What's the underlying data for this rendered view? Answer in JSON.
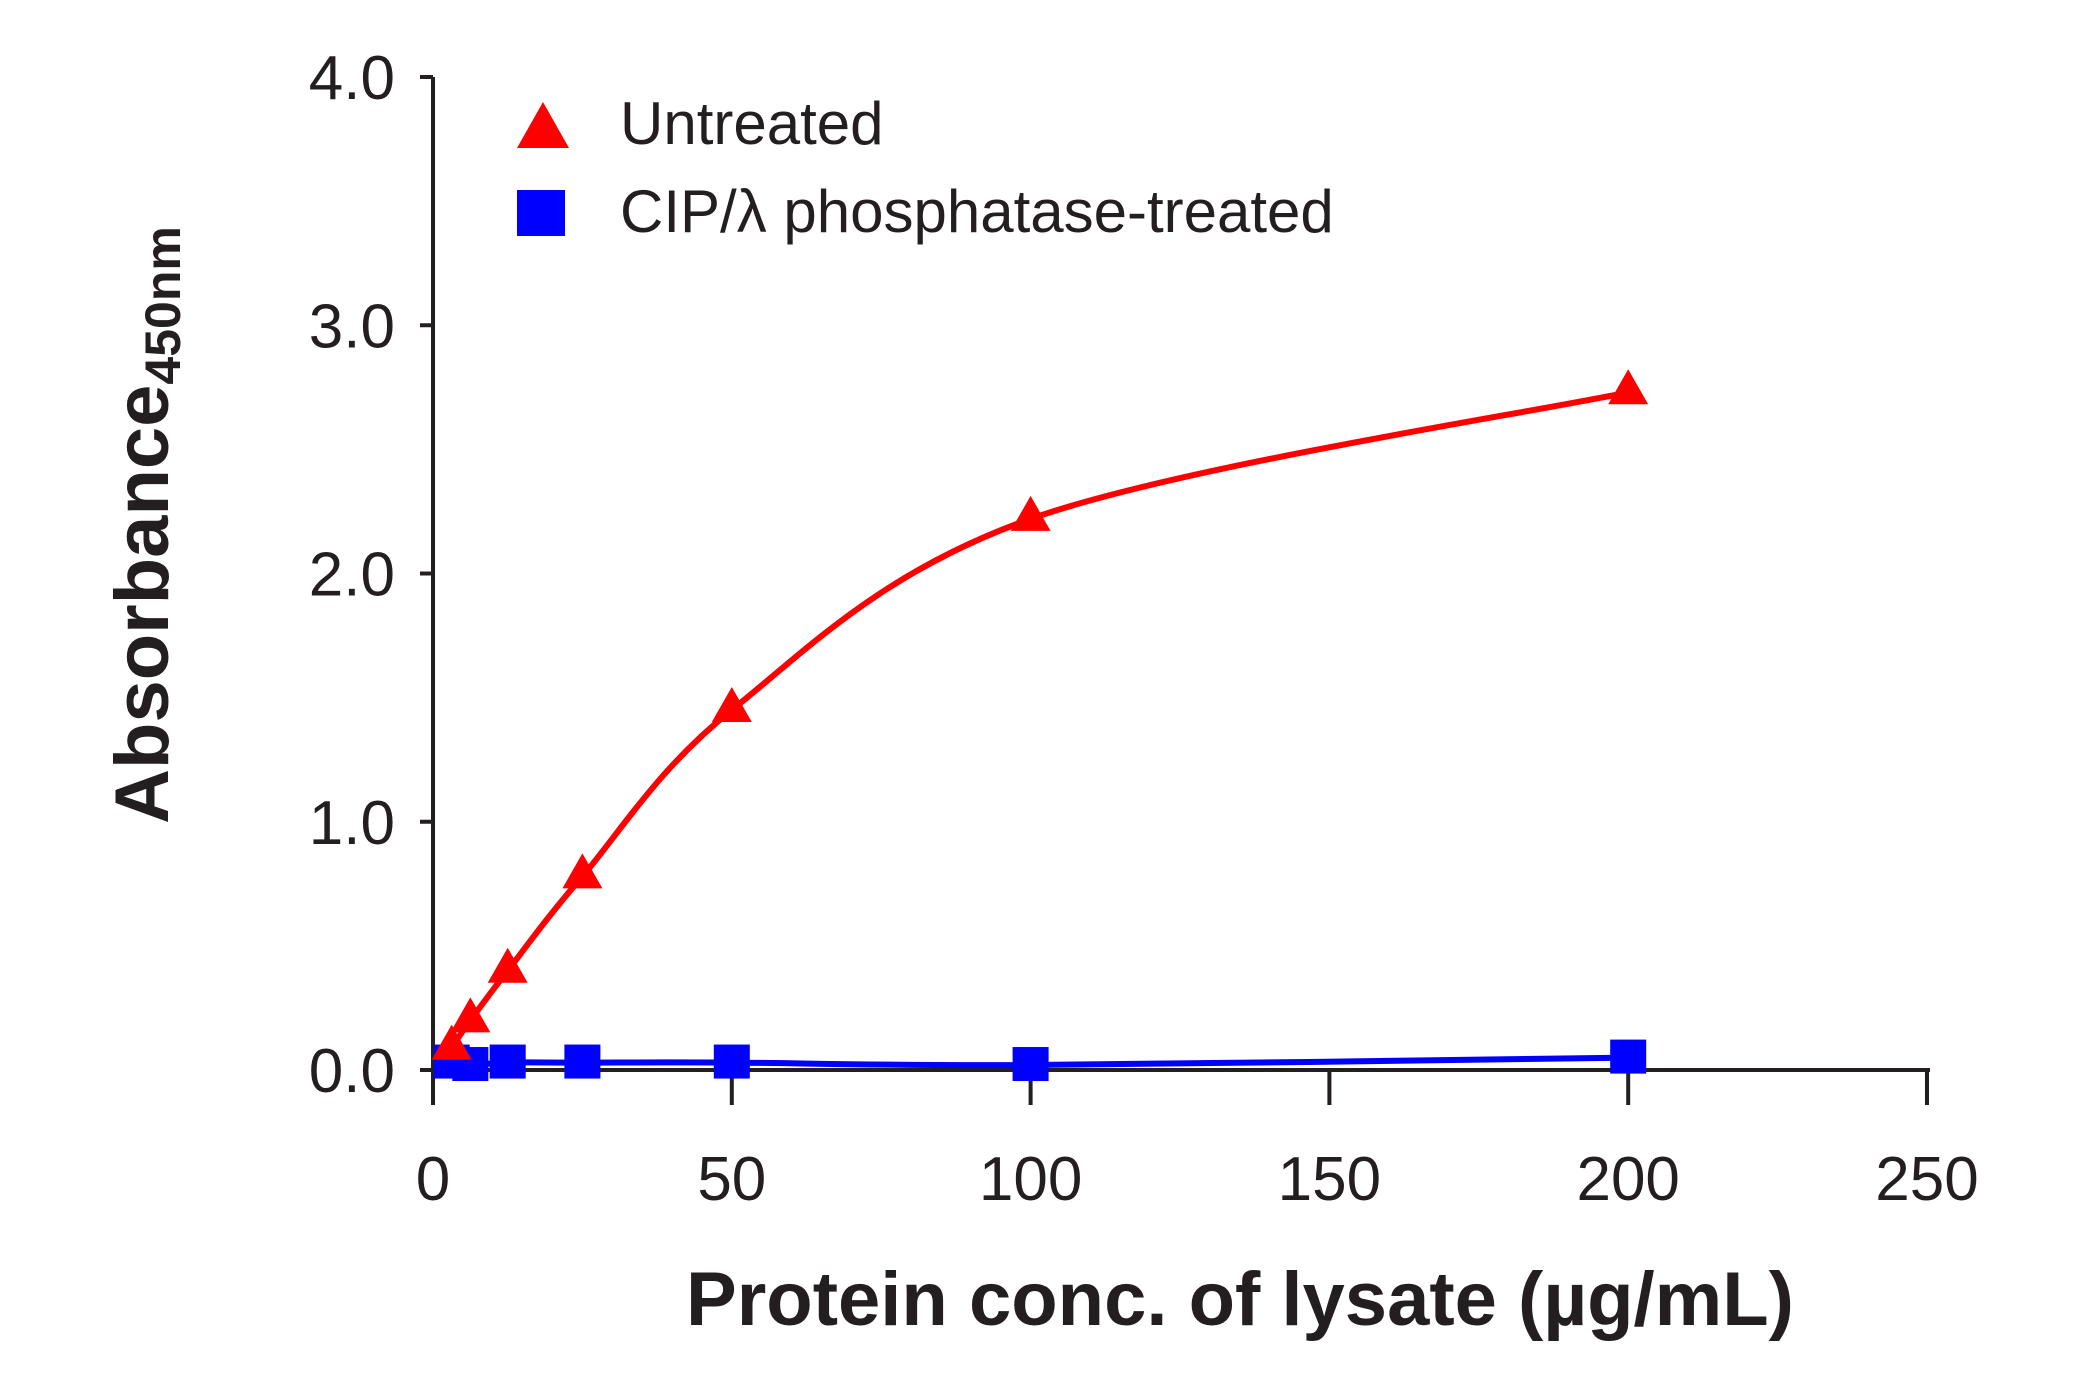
{
  "chart_data": {
    "type": "line",
    "title": "",
    "xlabel": "Protein conc. of lysate (µg/mL)",
    "ylabel": {
      "main": "Absorbance",
      "subscript": "450nm"
    },
    "xlim": [
      0,
      250
    ],
    "ylim": [
      0,
      4
    ],
    "xticks": [
      0,
      50,
      100,
      150,
      200,
      250
    ],
    "xtick_labels": [
      "0",
      "50",
      "100",
      "150",
      "200",
      "250"
    ],
    "yticks": [
      0,
      1,
      2,
      3,
      4
    ],
    "ytick_labels": [
      "0.0",
      "1.0",
      "2.0",
      "3.0",
      "4.0"
    ],
    "grid": false,
    "legend_position": "top-left",
    "series": [
      {
        "name": "Untreated",
        "color": "#ff0000",
        "marker": "triangle",
        "x": [
          3.125,
          6.25,
          12.5,
          25,
          50,
          100,
          200
        ],
        "y": [
          0.09,
          0.2,
          0.4,
          0.78,
          1.45,
          2.22,
          2.73
        ]
      },
      {
        "name": "CIP/λ phosphatase-treated",
        "color": "#0000ff",
        "marker": "square",
        "x": [
          3.125,
          6.25,
          12.5,
          25,
          50,
          100,
          200
        ],
        "y": [
          0.03,
          0.02,
          0.03,
          0.03,
          0.03,
          0.02,
          0.05
        ]
      }
    ]
  }
}
